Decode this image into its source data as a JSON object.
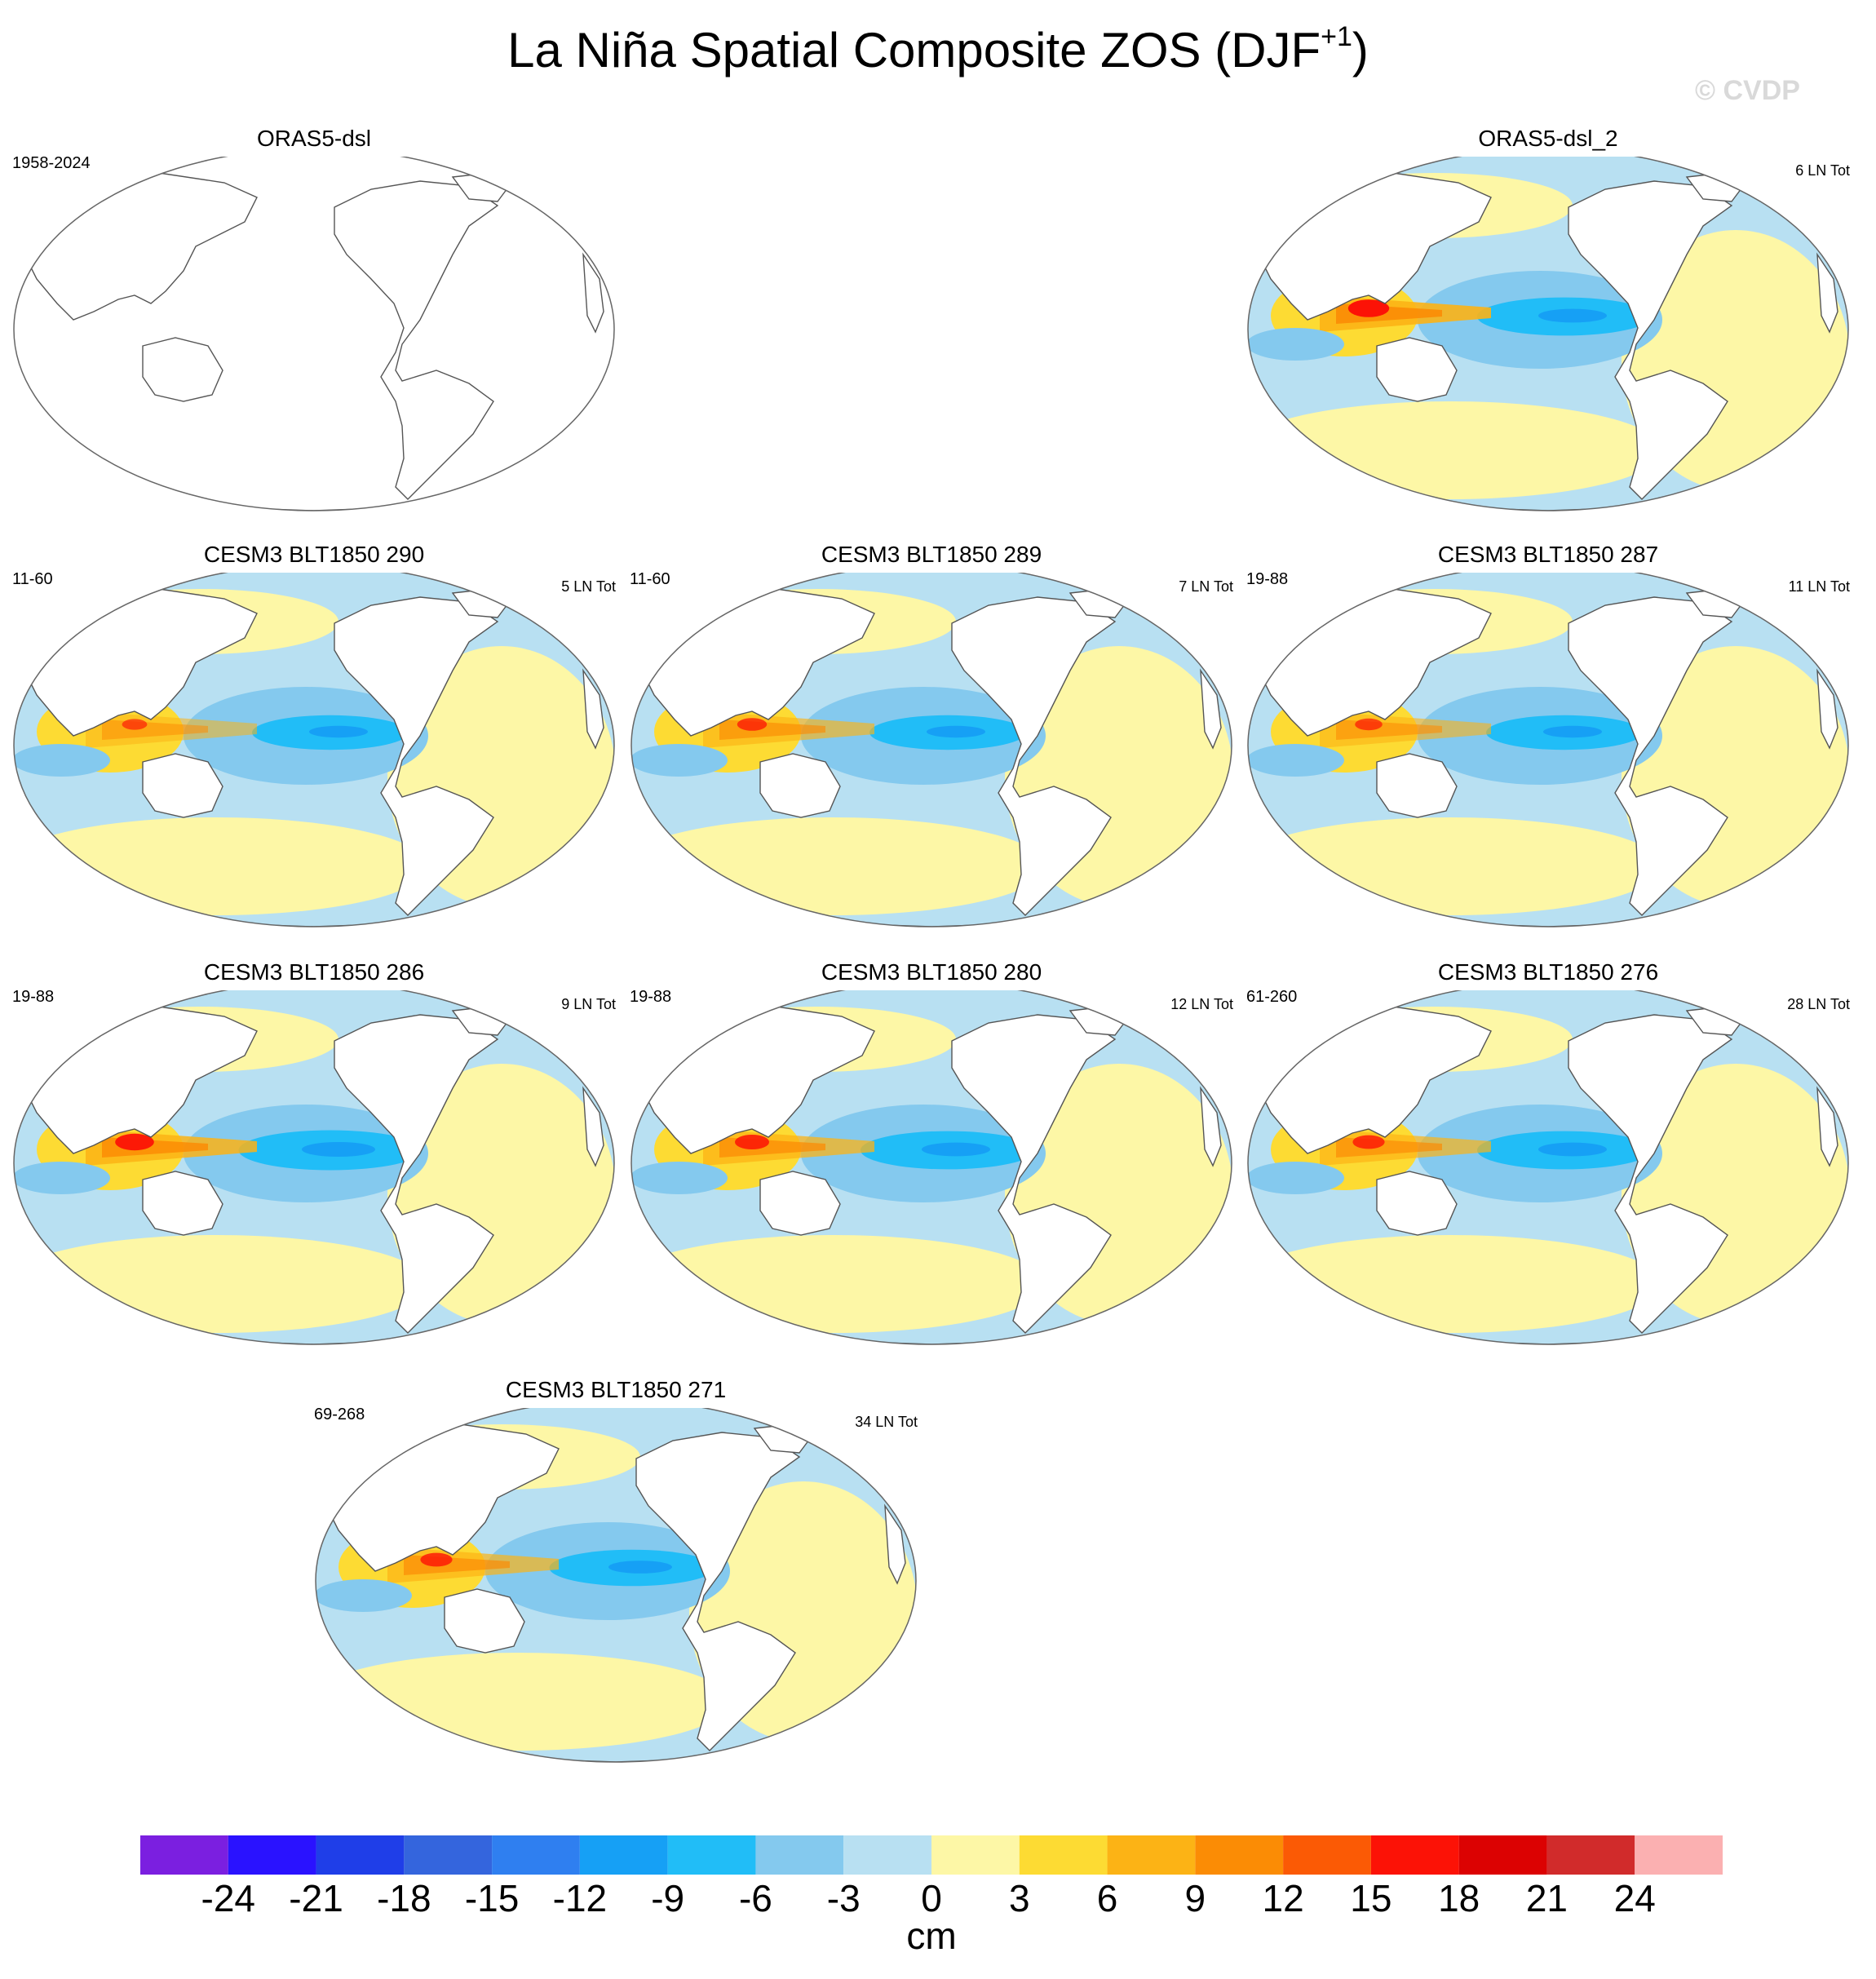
{
  "title": "La Niña Spatial Composite ZOS (DJF",
  "title_sup": "+1",
  "title_end": ")",
  "watermark": "© CVDP",
  "panels": [
    {
      "title": "ORAS5-dsl",
      "period": "1958-2024",
      "count": "",
      "has_data": false
    },
    {
      "title": "ORAS5-dsl_2",
      "period": "",
      "count": "6 LN Tot",
      "has_data": true,
      "warm": 0.9,
      "cold": 0.7
    },
    {
      "title": "CESM3 BLT1850 290",
      "period": "11-60",
      "count": "5 LN Tot",
      "has_data": true,
      "warm": 0.55,
      "cold": 0.6
    },
    {
      "title": "CESM3 BLT1850 289",
      "period": "11-60",
      "count": "7 LN Tot",
      "has_data": true,
      "warm": 0.65,
      "cold": 0.6
    },
    {
      "title": "CESM3 BLT1850 287",
      "period": "19-88",
      "count": "11 LN Tot",
      "has_data": true,
      "warm": 0.6,
      "cold": 0.6
    },
    {
      "title": "CESM3 BLT1850 286",
      "period": "19-88",
      "count": "9 LN Tot",
      "has_data": true,
      "warm": 0.85,
      "cold": 0.75
    },
    {
      "title": "CESM3 BLT1850 280",
      "period": "19-88",
      "count": "12 LN Tot",
      "has_data": true,
      "warm": 0.75,
      "cold": 0.7
    },
    {
      "title": "CESM3 BLT1850 276",
      "period": "61-260",
      "count": "28 LN Tot",
      "has_data": true,
      "warm": 0.7,
      "cold": 0.7
    },
    {
      "title": "CESM3 BLT1850 271",
      "period": "69-268",
      "count": "34 LN Tot",
      "has_data": true,
      "warm": 0.7,
      "cold": 0.65
    }
  ],
  "colorbar": {
    "unit": "cm",
    "labels": [
      "-24",
      "-21",
      "-18",
      "-15",
      "-12",
      "-9",
      "-6",
      "-3",
      "0",
      "3",
      "6",
      "9",
      "12",
      "15",
      "18",
      "21",
      "24"
    ],
    "colors": [
      "#7b1fe0",
      "#2a12ff",
      "#1f3ee8",
      "#3465dd",
      "#2f7ff0",
      "#16a0f5",
      "#21bdf7",
      "#84c9ee",
      "#b8e0f2",
      "#fdf7a6",
      "#fddb33",
      "#fcb315",
      "#fb8c05",
      "#fb5a05",
      "#fc1206",
      "#dc0202",
      "#d12b2b",
      "#fbb0b1"
    ]
  }
}
